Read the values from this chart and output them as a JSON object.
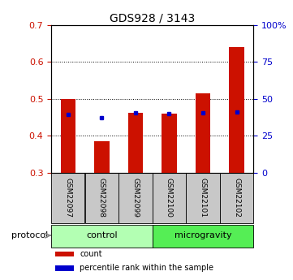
{
  "title": "GDS928 / 3143",
  "samples": [
    "GSM22097",
    "GSM22098",
    "GSM22099",
    "GSM22100",
    "GSM22101",
    "GSM22102"
  ],
  "red_values": [
    0.5,
    0.385,
    0.462,
    0.46,
    0.515,
    0.64
  ],
  "blue_values": [
    0.457,
    0.45,
    0.463,
    0.46,
    0.462,
    0.465
  ],
  "groups": [
    {
      "label": "control",
      "indices": [
        0,
        1,
        2
      ],
      "color": "#b3ffb3"
    },
    {
      "label": "microgravity",
      "indices": [
        3,
        4,
        5
      ],
      "color": "#55ee55"
    }
  ],
  "ylim": [
    0.3,
    0.7
  ],
  "yticks": [
    0.3,
    0.4,
    0.5,
    0.6,
    0.7
  ],
  "right_yticks_labels": [
    "0",
    "25",
    "50",
    "75",
    "100%"
  ],
  "right_ytick_vals": [
    0.3,
    0.4,
    0.5,
    0.6,
    0.7
  ],
  "bar_color": "#cc1100",
  "dot_color": "#0000cc",
  "bar_width": 0.45,
  "protocol_label": "protocol",
  "legend_items": [
    {
      "label": "count",
      "color": "#cc1100"
    },
    {
      "label": "percentile rank within the sample",
      "color": "#0000cc"
    }
  ],
  "background_color": "#ffffff",
  "tick_label_color_left": "#cc1100",
  "tick_label_color_right": "#0000cc",
  "x_tick_bg": "#c8c8c8"
}
